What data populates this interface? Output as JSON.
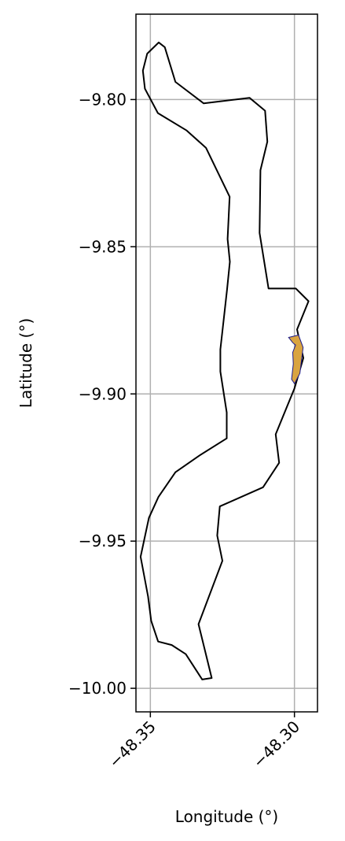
{
  "chart_data": {
    "type": "map",
    "xlabel": "Longitude (°)",
    "ylabel": "Latitude (°)",
    "xlim": [
      -48.355,
      -48.292
    ],
    "ylim": [
      -10.008,
      -9.771
    ],
    "x_ticks": [
      -48.35,
      -48.3
    ],
    "x_tick_labels": [
      "−48.35",
      "−48.30"
    ],
    "y_ticks": [
      -9.8,
      -9.85,
      -9.9,
      -9.95,
      -10.0
    ],
    "y_tick_labels": [
      "−9.80",
      "−9.85",
      "−9.90",
      "−9.95",
      "−10.00"
    ],
    "grid": true,
    "outline": {
      "stroke": "#000000",
      "fill": "none",
      "points": [
        [
          -48.3511,
          -9.7844
        ],
        [
          -48.3471,
          -9.7806
        ],
        [
          -48.345,
          -9.7822
        ],
        [
          -48.3413,
          -9.794
        ],
        [
          -48.3315,
          -9.8013
        ],
        [
          -48.3156,
          -9.7994
        ],
        [
          -48.3102,
          -9.8038
        ],
        [
          -48.3094,
          -9.8143
        ],
        [
          -48.3118,
          -9.824
        ],
        [
          -48.3121,
          -9.8453
        ],
        [
          -48.309,
          -9.8642
        ],
        [
          -48.2995,
          -9.8642
        ],
        [
          -48.2951,
          -9.8685
        ],
        [
          -48.2991,
          -9.8781
        ],
        [
          -48.2969,
          -9.8878
        ],
        [
          -48.3,
          -9.8981
        ],
        [
          -48.3065,
          -9.9137
        ],
        [
          -48.3053,
          -9.9234
        ],
        [
          -48.3109,
          -9.9317
        ],
        [
          -48.3259,
          -9.9382
        ],
        [
          -48.3268,
          -9.9481
        ],
        [
          -48.325,
          -9.9567
        ],
        [
          -48.3333,
          -9.9782
        ],
        [
          -48.3287,
          -9.9965
        ],
        [
          -48.332,
          -9.997
        ],
        [
          -48.3377,
          -9.9884
        ],
        [
          -48.3426,
          -9.9853
        ],
        [
          -48.3473,
          -9.9841
        ],
        [
          -48.3497,
          -9.9771
        ],
        [
          -48.3508,
          -9.9688
        ],
        [
          -48.3534,
          -9.9553
        ],
        [
          -48.3505,
          -9.9421
        ],
        [
          -48.3472,
          -9.935
        ],
        [
          -48.3413,
          -9.9266
        ],
        [
          -48.3331,
          -9.921
        ],
        [
          -48.3235,
          -9.9151
        ],
        [
          -48.3235,
          -9.9063
        ],
        [
          -48.3257,
          -9.8924
        ],
        [
          -48.3257,
          -9.8849
        ],
        [
          -48.3234,
          -9.8646
        ],
        [
          -48.3224,
          -9.8551
        ],
        [
          -48.3232,
          -9.8474
        ],
        [
          -48.3225,
          -9.833
        ],
        [
          -48.3307,
          -9.8164
        ],
        [
          -48.3374,
          -9.8105
        ],
        [
          -48.3474,
          -9.8046
        ],
        [
          -48.3519,
          -9.7963
        ],
        [
          -48.3526,
          -9.7902
        ]
      ]
    },
    "highlight": {
      "fill": "#d9a441",
      "stroke": "#1a1a8c",
      "points": [
        [
          -48.302,
          -9.8808
        ],
        [
          -48.2986,
          -9.88
        ],
        [
          -48.297,
          -9.8842
        ],
        [
          -48.2981,
          -9.893
        ],
        [
          -48.3,
          -9.8965
        ],
        [
          -48.301,
          -9.895
        ],
        [
          -48.3004,
          -9.8898
        ],
        [
          -48.3006,
          -9.8859
        ],
        [
          -48.2996,
          -9.8834
        ],
        [
          -48.3006,
          -9.8826
        ]
      ]
    },
    "gridline_color": "#b0b0b0"
  }
}
